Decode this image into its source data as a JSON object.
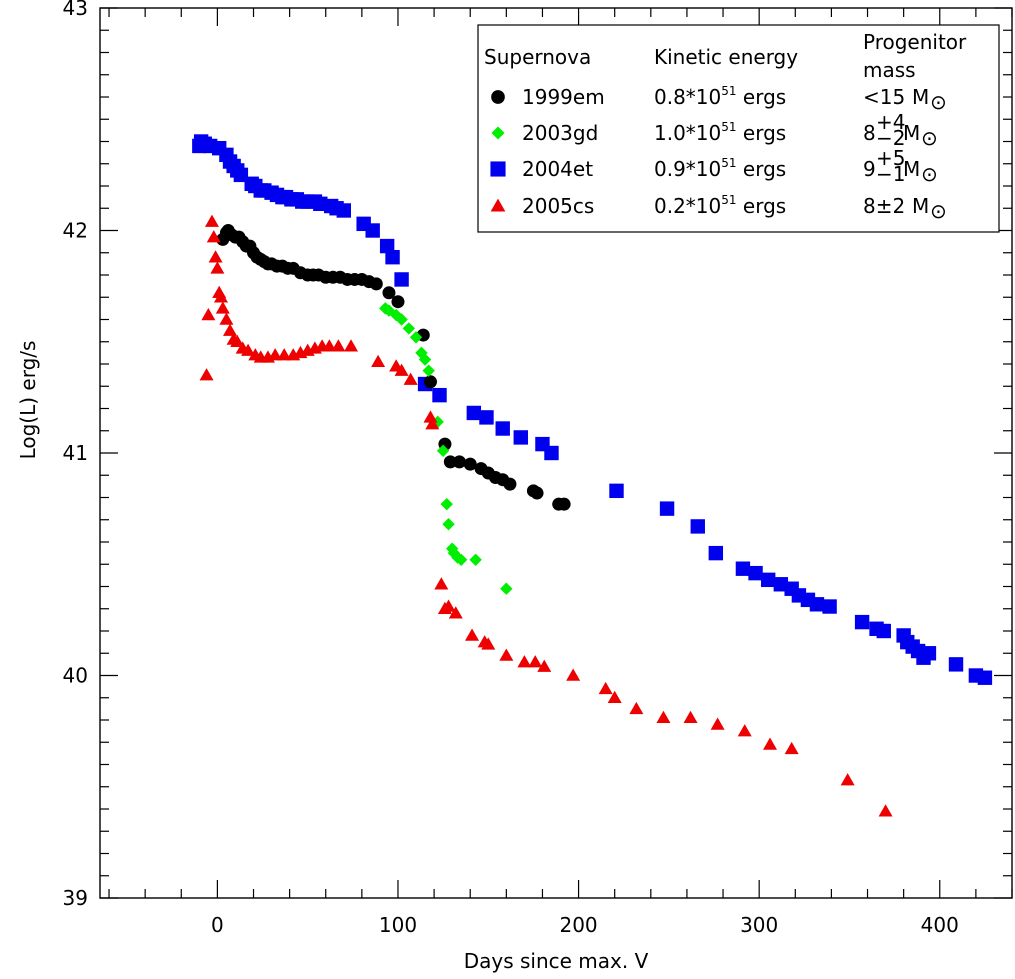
{
  "chart_data": {
    "type": "scatter",
    "title": "",
    "xlabel": "Days since max. V",
    "ylabel": "Log(L) erg/s",
    "xlim": [
      -65,
      440
    ],
    "ylim": [
      39,
      43
    ],
    "xticks": [
      0,
      100,
      200,
      300,
      400
    ],
    "xtick_labels": [
      "0",
      "100",
      "200",
      "300",
      "400"
    ],
    "yticks": [
      39,
      40,
      41,
      42,
      43
    ],
    "ytick_labels": [
      "39",
      "40",
      "41",
      "42",
      "43"
    ],
    "grid": false,
    "legend_position": "top-right",
    "legend": {
      "headers": {
        "supernova": "Supernova",
        "energy": "Kinetic energy",
        "mass_line1": "Progenitor",
        "mass_line2": "mass"
      },
      "rows": [
        {
          "name": "1999em",
          "energy_base": "0.8*10",
          "energy_exp": "51",
          "energy_unit": " ergs",
          "mass_prefix": "<15",
          "mass_sup": "",
          "mass_sub": "",
          "mass_unit": "M",
          "sun": "⊙"
        },
        {
          "name": "2003gd",
          "energy_base": "1.0*10",
          "energy_exp": "51",
          "energy_unit": " ergs",
          "mass_prefix": "8",
          "mass_sup": "+4",
          "mass_sub": "−2",
          "mass_unit": "M",
          "sun": "⊙"
        },
        {
          "name": "2004et",
          "energy_base": "0.9*10",
          "energy_exp": "51",
          "energy_unit": " ergs",
          "mass_prefix": "9",
          "mass_sup": "+5",
          "mass_sub": "−1",
          "mass_unit": "M",
          "sun": "⊙"
        },
        {
          "name": "2005cs",
          "energy_base": "0.2*10",
          "energy_exp": "51",
          "energy_unit": " ergs",
          "mass_prefix": "8±2",
          "mass_sup": "",
          "mass_sub": "",
          "mass_unit": "M",
          "sun": "⊙"
        }
      ]
    },
    "series": [
      {
        "name": "1999em",
        "marker": "circle",
        "color": "#000000",
        "points": [
          [
            3,
            41.96
          ],
          [
            5,
            41.99
          ],
          [
            6,
            42.0
          ],
          [
            8,
            41.98
          ],
          [
            10,
            41.97
          ],
          [
            12,
            41.97
          ],
          [
            14,
            41.95
          ],
          [
            16,
            41.93
          ],
          [
            18,
            41.93
          ],
          [
            20,
            41.9
          ],
          [
            22,
            41.88
          ],
          [
            24,
            41.87
          ],
          [
            26,
            41.86
          ],
          [
            28,
            41.85
          ],
          [
            30,
            41.85
          ],
          [
            33,
            41.84
          ],
          [
            36,
            41.84
          ],
          [
            39,
            41.83
          ],
          [
            42,
            41.83
          ],
          [
            46,
            41.81
          ],
          [
            50,
            41.8
          ],
          [
            53,
            41.8
          ],
          [
            56,
            41.8
          ],
          [
            60,
            41.79
          ],
          [
            64,
            41.79
          ],
          [
            68,
            41.79
          ],
          [
            72,
            41.78
          ],
          [
            76,
            41.78
          ],
          [
            80,
            41.78
          ],
          [
            84,
            41.77
          ],
          [
            88,
            41.76
          ],
          [
            95,
            41.72
          ],
          [
            100,
            41.68
          ],
          [
            114,
            41.53
          ],
          [
            118,
            41.32
          ],
          [
            126,
            41.04
          ],
          [
            129,
            40.96
          ],
          [
            134,
            40.96
          ],
          [
            140,
            40.95
          ],
          [
            146,
            40.93
          ],
          [
            150,
            40.91
          ],
          [
            154,
            40.89
          ],
          [
            158,
            40.88
          ],
          [
            162,
            40.86
          ],
          [
            175,
            40.83
          ],
          [
            177,
            40.82
          ],
          [
            189,
            40.77
          ],
          [
            192,
            40.77
          ]
        ]
      },
      {
        "name": "2003gd",
        "marker": "diamond",
        "color": "#00ee00",
        "points": [
          [
            93,
            41.65
          ],
          [
            95,
            41.64
          ],
          [
            99,
            41.62
          ],
          [
            102,
            41.6
          ],
          [
            106,
            41.56
          ],
          [
            110,
            41.52
          ],
          [
            113,
            41.45
          ],
          [
            115,
            41.42
          ],
          [
            117,
            41.37
          ],
          [
            122,
            41.14
          ],
          [
            125,
            41.01
          ],
          [
            127,
            40.77
          ],
          [
            128,
            40.68
          ],
          [
            130,
            40.57
          ],
          [
            131,
            40.55
          ],
          [
            133,
            40.53
          ],
          [
            135,
            40.52
          ],
          [
            143,
            40.52
          ],
          [
            160,
            40.39
          ]
        ]
      },
      {
        "name": "2004et",
        "marker": "square",
        "color": "#0000ee",
        "points": [
          [
            -10,
            42.38
          ],
          [
            -9,
            42.4
          ],
          [
            -7,
            42.39
          ],
          [
            -4,
            42.38
          ],
          [
            1,
            42.37
          ],
          [
            5,
            42.34
          ],
          [
            7,
            42.31
          ],
          [
            9,
            42.29
          ],
          [
            11,
            42.27
          ],
          [
            13,
            42.25
          ],
          [
            19,
            42.21
          ],
          [
            21,
            42.2
          ],
          [
            24,
            42.18
          ],
          [
            26,
            42.18
          ],
          [
            30,
            42.17
          ],
          [
            33,
            42.16
          ],
          [
            36,
            42.15
          ],
          [
            38,
            42.15
          ],
          [
            41,
            42.14
          ],
          [
            44,
            42.14
          ],
          [
            47,
            42.13
          ],
          [
            50,
            42.13
          ],
          [
            54,
            42.13
          ],
          [
            57,
            42.12
          ],
          [
            63,
            42.11
          ],
          [
            66,
            42.1
          ],
          [
            70,
            42.09
          ],
          [
            81,
            42.03
          ],
          [
            86,
            42.0
          ],
          [
            94,
            41.93
          ],
          [
            97,
            41.88
          ],
          [
            102,
            41.78
          ],
          [
            115,
            41.31
          ],
          [
            123,
            41.26
          ],
          [
            142,
            41.18
          ],
          [
            149,
            41.16
          ],
          [
            158,
            41.11
          ],
          [
            168,
            41.07
          ],
          [
            180,
            41.04
          ],
          [
            185,
            41.0
          ],
          [
            221,
            40.83
          ],
          [
            249,
            40.75
          ],
          [
            266,
            40.67
          ],
          [
            276,
            40.55
          ],
          [
            291,
            40.48
          ],
          [
            298,
            40.46
          ],
          [
            305,
            40.43
          ],
          [
            312,
            40.41
          ],
          [
            318,
            40.39
          ],
          [
            322,
            40.36
          ],
          [
            327,
            40.34
          ],
          [
            332,
            40.32
          ],
          [
            339,
            40.31
          ],
          [
            357,
            40.24
          ],
          [
            365,
            40.21
          ],
          [
            369,
            40.2
          ],
          [
            380,
            40.18
          ],
          [
            382,
            40.15
          ],
          [
            385,
            40.13
          ],
          [
            388,
            40.11
          ],
          [
            391,
            40.08
          ],
          [
            394,
            40.1
          ],
          [
            409,
            40.05
          ],
          [
            420,
            40.0
          ],
          [
            425,
            39.99
          ]
        ]
      },
      {
        "name": "2005cs",
        "marker": "triangle",
        "color": "#ee0000",
        "points": [
          [
            -6,
            41.35
          ],
          [
            -5,
            41.62
          ],
          [
            -3,
            42.04
          ],
          [
            -2,
            41.97
          ],
          [
            -1,
            41.88
          ],
          [
            0,
            41.83
          ],
          [
            1,
            41.72
          ],
          [
            2,
            41.7
          ],
          [
            3,
            41.65
          ],
          [
            5,
            41.6
          ],
          [
            7,
            41.55
          ],
          [
            9,
            41.51
          ],
          [
            11,
            41.5
          ],
          [
            14,
            41.47
          ],
          [
            17,
            41.46
          ],
          [
            21,
            41.44
          ],
          [
            24,
            41.43
          ],
          [
            28,
            41.43
          ],
          [
            32,
            41.44
          ],
          [
            37,
            41.44
          ],
          [
            42,
            41.44
          ],
          [
            46,
            41.45
          ],
          [
            50,
            41.46
          ],
          [
            54,
            41.47
          ],
          [
            58,
            41.48
          ],
          [
            62,
            41.48
          ],
          [
            67,
            41.48
          ],
          [
            74,
            41.48
          ],
          [
            89,
            41.41
          ],
          [
            99,
            41.39
          ],
          [
            102,
            41.37
          ],
          [
            107,
            41.33
          ],
          [
            118,
            41.16
          ],
          [
            119,
            41.13
          ],
          [
            124,
            40.41
          ],
          [
            126,
            40.3
          ],
          [
            128,
            40.31
          ],
          [
            132,
            40.28
          ],
          [
            141,
            40.18
          ],
          [
            148,
            40.15
          ],
          [
            150,
            40.14
          ],
          [
            160,
            40.09
          ],
          [
            170,
            40.06
          ],
          [
            176,
            40.06
          ],
          [
            181,
            40.04
          ],
          [
            197,
            40.0
          ],
          [
            215,
            39.94
          ],
          [
            220,
            39.9
          ],
          [
            232,
            39.85
          ],
          [
            247,
            39.81
          ],
          [
            262,
            39.81
          ],
          [
            277,
            39.78
          ],
          [
            292,
            39.75
          ],
          [
            306,
            39.69
          ],
          [
            318,
            39.67
          ],
          [
            349,
            39.53
          ],
          [
            370,
            39.39
          ]
        ]
      }
    ]
  }
}
